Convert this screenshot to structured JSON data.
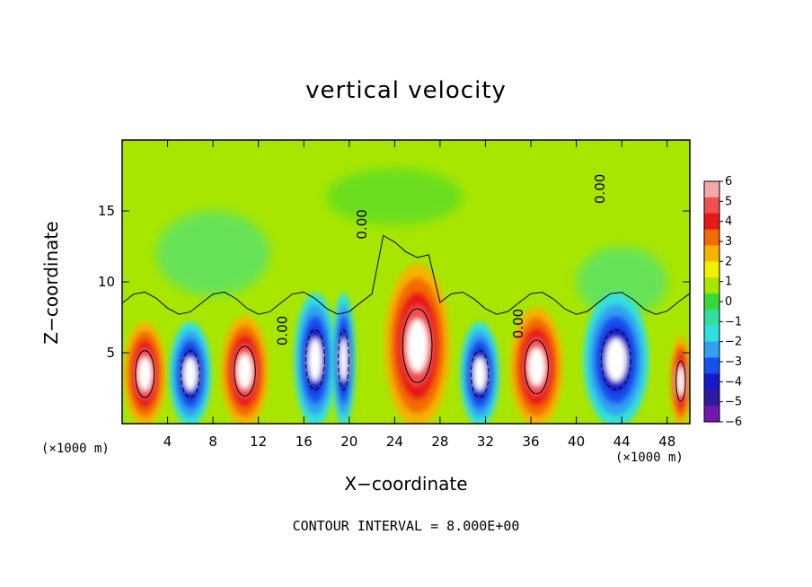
{
  "chart_data": {
    "type": "heatmap",
    "title": "vertical velocity",
    "xlabel": "X−coordinate",
    "ylabel": "Z−coordinate",
    "x_unit_label": "(×1000 m)",
    "x_unit_label_right": "(×1000 m)",
    "note": "CONTOUR INTERVAL =  8.000E+00",
    "xlim": [
      0,
      50
    ],
    "ylim": [
      0,
      20
    ],
    "x_ticks": [
      4,
      8,
      12,
      16,
      20,
      24,
      28,
      32,
      36,
      40,
      44,
      48
    ],
    "x_tick_labels": [
      "4",
      "8",
      "12",
      "16",
      "20",
      "24",
      "28",
      "32",
      "36",
      "40",
      "44",
      "48"
    ],
    "y_ticks": [
      5,
      10,
      15
    ],
    "y_tick_labels": [
      "5",
      "10",
      "15"
    ],
    "contour_labels": [
      "0.00",
      "0.00",
      "0.00",
      "0.00"
    ],
    "colorbar": {
      "min": -6,
      "max": 6,
      "labels": [
        "6",
        "5",
        "4",
        "3",
        "2",
        "1",
        "0",
        "−1",
        "−2",
        "−3",
        "−4",
        "−5",
        "−6"
      ],
      "colors": [
        "#f4a8a8",
        "#f05050",
        "#e81818",
        "#f46a00",
        "#f4b400",
        "#f0f000",
        "#a8e600",
        "#38d838",
        "#30e0a0",
        "#30e0e0",
        "#30a0f0",
        "#1850f0",
        "#1818c8",
        "#3018a0",
        "#7018b0"
      ]
    },
    "cells": [
      {
        "x": 2.0,
        "z": 3.5,
        "w": 1.6,
        "type": "updraft"
      },
      {
        "x": 6.0,
        "z": 3.5,
        "w": 1.6,
        "type": "downdraft"
      },
      {
        "x": 10.8,
        "z": 3.7,
        "w": 1.8,
        "type": "updraft"
      },
      {
        "x": 17.0,
        "z": 4.5,
        "w": 1.6,
        "type": "downdraft"
      },
      {
        "x": 19.5,
        "z": 4.5,
        "w": 0.9,
        "type": "downdraft"
      },
      {
        "x": 26.0,
        "z": 5.5,
        "w": 2.5,
        "type": "updraft"
      },
      {
        "x": 31.5,
        "z": 3.5,
        "w": 1.5,
        "type": "downdraft"
      },
      {
        "x": 36.5,
        "z": 4.0,
        "w": 2.0,
        "type": "updraft"
      },
      {
        "x": 43.5,
        "z": 4.5,
        "w": 2.5,
        "type": "downdraft"
      },
      {
        "x": 49.2,
        "z": 3.0,
        "w": 0.8,
        "type": "updraft"
      }
    ]
  }
}
